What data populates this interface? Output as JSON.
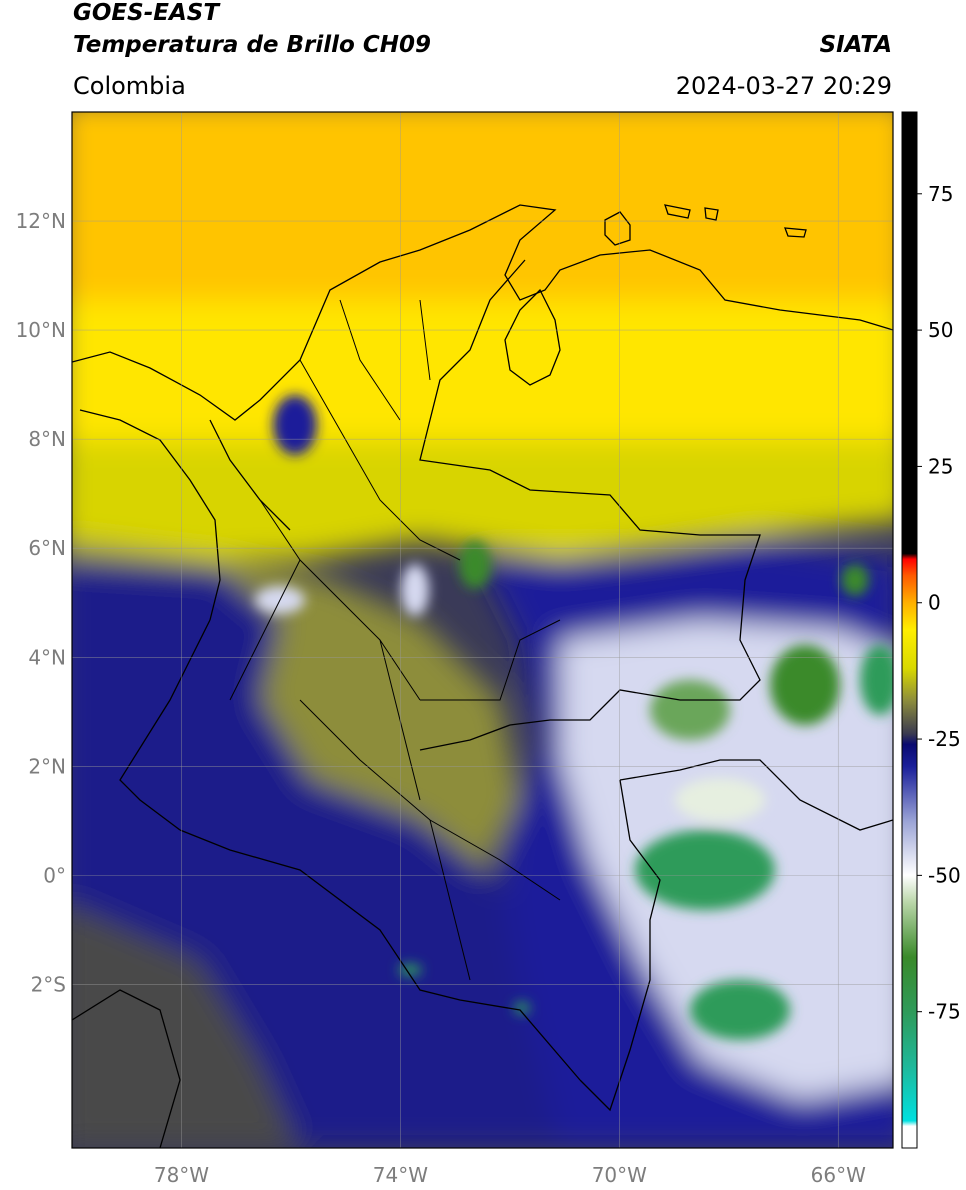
{
  "header": {
    "title_line1": "GOES-EAST",
    "title_line2": "Temperatura de Brillo CH09",
    "brand": "SIATA",
    "region": "Colombia",
    "datetime": "2024-03-27 20:29"
  },
  "map": {
    "lon_range": [
      -80,
      -65
    ],
    "lat_range": [
      -5,
      14
    ],
    "lon_ticks": [
      {
        "value": -78,
        "label": "78°W"
      },
      {
        "value": -74,
        "label": "74°W"
      },
      {
        "value": -70,
        "label": "70°W"
      },
      {
        "value": -66,
        "label": "66°W"
      }
    ],
    "lat_ticks": [
      {
        "value": 12,
        "label": "12°N"
      },
      {
        "value": 10,
        "label": "10°N"
      },
      {
        "value": 8,
        "label": "8°N"
      },
      {
        "value": 6,
        "label": "6°N"
      },
      {
        "value": 4,
        "label": "4°N"
      },
      {
        "value": 2,
        "label": "2°N"
      },
      {
        "value": 0,
        "label": "0°"
      },
      {
        "value": -2,
        "label": "2°S"
      }
    ],
    "grid": true
  },
  "colorbar": {
    "range": [
      -100,
      90
    ],
    "ticks": [
      {
        "value": 75,
        "label": "75"
      },
      {
        "value": 50,
        "label": "50"
      },
      {
        "value": 25,
        "label": "25"
      },
      {
        "value": 0,
        "label": "0"
      },
      {
        "value": -25,
        "label": "-25"
      },
      {
        "value": -50,
        "label": "-50"
      },
      {
        "value": -75,
        "label": "-75"
      }
    ],
    "stops": [
      {
        "value": -100,
        "color": "#ffffff"
      },
      {
        "value": -96,
        "color": "#ffffff"
      },
      {
        "value": -95,
        "color": "#00e0e0"
      },
      {
        "value": -85,
        "color": "#1fb89a"
      },
      {
        "value": -75,
        "color": "#2f9b5a"
      },
      {
        "value": -65,
        "color": "#3a8a2a"
      },
      {
        "value": -55,
        "color": "#b9d6a8"
      },
      {
        "value": -50,
        "color": "#ffffff"
      },
      {
        "value": -40,
        "color": "#9aa3d6"
      },
      {
        "value": -30,
        "color": "#1a1f9a"
      },
      {
        "value": -26,
        "color": "#0a0a70"
      },
      {
        "value": -24,
        "color": "#3a3a50"
      },
      {
        "value": -18,
        "color": "#8c8c3c"
      },
      {
        "value": -12,
        "color": "#d9d900"
      },
      {
        "value": -5,
        "color": "#ffee00"
      },
      {
        "value": 0,
        "color": "#ffb000"
      },
      {
        "value": 5,
        "color": "#ff5a00"
      },
      {
        "value": 8,
        "color": "#ff0000"
      },
      {
        "value": 9,
        "color": "#000000"
      },
      {
        "value": 90,
        "color": "#000000"
      }
    ]
  }
}
